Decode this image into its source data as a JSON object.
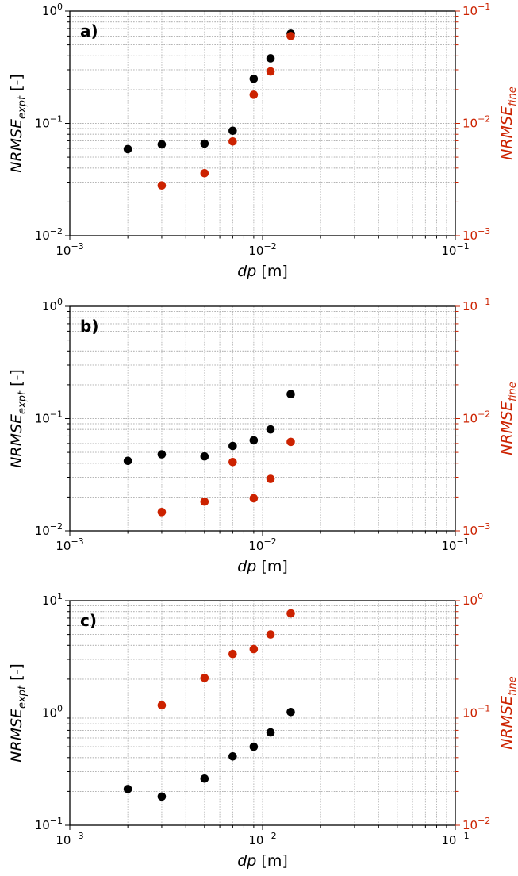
{
  "colors": {
    "left_series": "#000000",
    "right_series": "#cc2200",
    "grid": "#b3b3b3",
    "axes": "#000000"
  },
  "chart_data": [
    {
      "type": "scatter",
      "panel_label": "a)",
      "xscale": "log",
      "yscale": "log",
      "xlim": [
        0.001,
        0.1
      ],
      "xticks": [
        {
          "value": 0.001,
          "base": "10",
          "exp": "−3"
        },
        {
          "value": 0.01,
          "base": "10",
          "exp": "−2"
        },
        {
          "value": 0.1,
          "base": "10",
          "exp": "−1"
        }
      ],
      "xlabel": {
        "italic": "dp",
        "rest": " [m]"
      },
      "ylim_left": [
        0.01,
        1
      ],
      "yticks_left": [
        {
          "value": 0.01,
          "base": "10",
          "exp": "−2"
        },
        {
          "value": 0.1,
          "base": "10",
          "exp": "−1"
        },
        {
          "value": 1,
          "base": "10",
          "exp": "0"
        }
      ],
      "ylabel_left": {
        "main": "NRMSE",
        "sub": "expt",
        "rest": " [-]"
      },
      "ylim_right": [
        0.001,
        0.1
      ],
      "yticks_right": [
        {
          "value": 0.001,
          "base": "10",
          "exp": "−3"
        },
        {
          "value": 0.01,
          "base": "10",
          "exp": "−2"
        },
        {
          "value": 0.1,
          "base": "10",
          "exp": "−1"
        }
      ],
      "ylabel_right": {
        "main": "NRMSE",
        "sub": "fine"
      },
      "grid": true,
      "series": [
        {
          "axis": "left",
          "color": "#000000",
          "x": [
            0.002,
            0.003,
            0.005,
            0.007,
            0.009,
            0.011,
            0.014
          ],
          "y": [
            0.059,
            0.065,
            0.066,
            0.086,
            0.25,
            0.38,
            0.63
          ]
        },
        {
          "axis": "right",
          "color": "#cc2200",
          "x": [
            0.003,
            0.005,
            0.007,
            0.009,
            0.011,
            0.014
          ],
          "y": [
            0.0028,
            0.0036,
            0.0069,
            0.018,
            0.029,
            0.06
          ]
        }
      ]
    },
    {
      "type": "scatter",
      "panel_label": "b)",
      "xscale": "log",
      "yscale": "log",
      "xlim": [
        0.001,
        0.1
      ],
      "xticks": [
        {
          "value": 0.001,
          "base": "10",
          "exp": "−3"
        },
        {
          "value": 0.01,
          "base": "10",
          "exp": "−2"
        },
        {
          "value": 0.1,
          "base": "10",
          "exp": "−1"
        }
      ],
      "xlabel": {
        "italic": "dp",
        "rest": " [m]"
      },
      "ylim_left": [
        0.01,
        1
      ],
      "yticks_left": [
        {
          "value": 0.01,
          "base": "10",
          "exp": "−2"
        },
        {
          "value": 0.1,
          "base": "10",
          "exp": "−1"
        },
        {
          "value": 1,
          "base": "10",
          "exp": "0"
        }
      ],
      "ylabel_left": {
        "main": "NRMSE",
        "sub": "expt",
        "rest": " [-]"
      },
      "ylim_right": [
        0.001,
        0.1
      ],
      "yticks_right": [
        {
          "value": 0.001,
          "base": "10",
          "exp": "−3"
        },
        {
          "value": 0.01,
          "base": "10",
          "exp": "−2"
        },
        {
          "value": 0.1,
          "base": "10",
          "exp": "−1"
        }
      ],
      "ylabel_right": {
        "main": "NRMSE",
        "sub": "fine"
      },
      "grid": true,
      "series": [
        {
          "axis": "left",
          "color": "#000000",
          "x": [
            0.002,
            0.003,
            0.005,
            0.007,
            0.009,
            0.011,
            0.014
          ],
          "y": [
            0.042,
            0.048,
            0.046,
            0.057,
            0.064,
            0.08,
            0.165
          ]
        },
        {
          "axis": "right",
          "color": "#cc2200",
          "x": [
            0.003,
            0.005,
            0.007,
            0.009,
            0.011,
            0.014
          ],
          "y": [
            0.00147,
            0.00182,
            0.0041,
            0.00195,
            0.0029,
            0.0062
          ]
        }
      ]
    },
    {
      "type": "scatter",
      "panel_label": "c)",
      "xscale": "log",
      "yscale": "log",
      "xlim": [
        0.001,
        0.1
      ],
      "xticks": [
        {
          "value": 0.001,
          "base": "10",
          "exp": "−3"
        },
        {
          "value": 0.01,
          "base": "10",
          "exp": "−2"
        },
        {
          "value": 0.1,
          "base": "10",
          "exp": "−1"
        }
      ],
      "xlabel": {
        "italic": "dp",
        "rest": " [m]"
      },
      "ylim_left": [
        0.1,
        10
      ],
      "yticks_left": [
        {
          "value": 0.1,
          "base": "10",
          "exp": "−1"
        },
        {
          "value": 1,
          "base": "10",
          "exp": "0"
        },
        {
          "value": 10,
          "base": "10",
          "exp": "1"
        }
      ],
      "ylabel_left": {
        "main": "NRMSE",
        "sub": "expt",
        "rest": " [-]"
      },
      "ylim_right": [
        0.01,
        1
      ],
      "yticks_right": [
        {
          "value": 0.01,
          "base": "10",
          "exp": "−2"
        },
        {
          "value": 0.1,
          "base": "10",
          "exp": "−1"
        },
        {
          "value": 1,
          "base": "10",
          "exp": "0"
        }
      ],
      "ylabel_right": {
        "main": "NRMSE",
        "sub": "fine"
      },
      "grid": true,
      "series": [
        {
          "axis": "left",
          "color": "#000000",
          "x": [
            0.002,
            0.003,
            0.005,
            0.007,
            0.009,
            0.011,
            0.014
          ],
          "y": [
            0.21,
            0.18,
            0.26,
            0.41,
            0.5,
            0.67,
            1.02
          ]
        },
        {
          "axis": "right",
          "color": "#cc2200",
          "x": [
            0.003,
            0.005,
            0.007,
            0.009,
            0.011,
            0.014
          ],
          "y": [
            0.117,
            0.205,
            0.335,
            0.37,
            0.5,
            0.77
          ]
        }
      ]
    }
  ]
}
